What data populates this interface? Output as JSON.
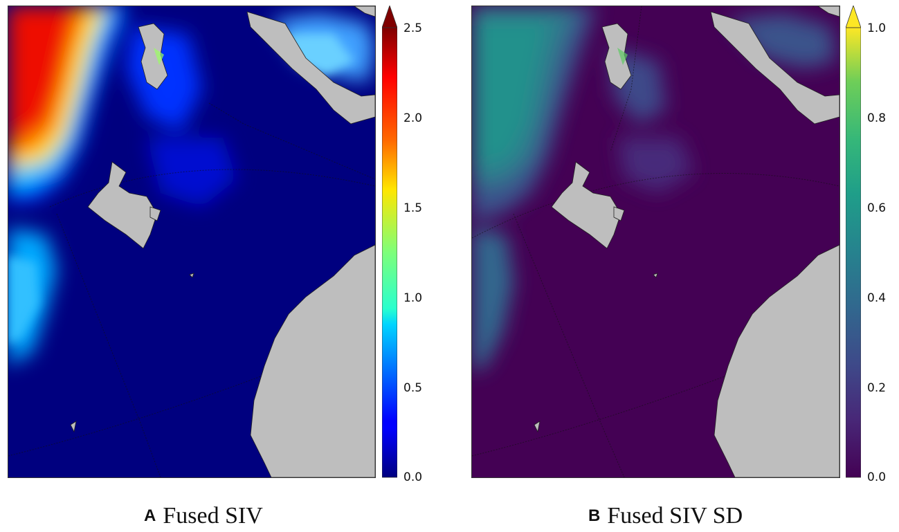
{
  "panels": [
    {
      "letter": "A",
      "title": "Fused SIV",
      "colormap": "jet",
      "colorbar": {
        "min": 0.0,
        "max": 2.5,
        "extend": "max",
        "ticks": [
          "0.0",
          "0.5",
          "1.0",
          "1.5",
          "2.0",
          "2.5"
        ]
      },
      "colors": {
        "ocean": "#00007f",
        "land": "#bebebe",
        "extend_arrow": "#7f0000"
      }
    },
    {
      "letter": "B",
      "title": "Fused SIV SD",
      "colormap": "viridis",
      "colorbar": {
        "min": 0.0,
        "max": 1.0,
        "extend": "max",
        "ticks": [
          "0.0",
          "0.2",
          "0.4",
          "0.6",
          "0.8",
          "1.0"
        ]
      },
      "colors": {
        "ocean": "#440154",
        "land": "#bebebe",
        "extend_arrow": "#fde725"
      }
    }
  ]
}
